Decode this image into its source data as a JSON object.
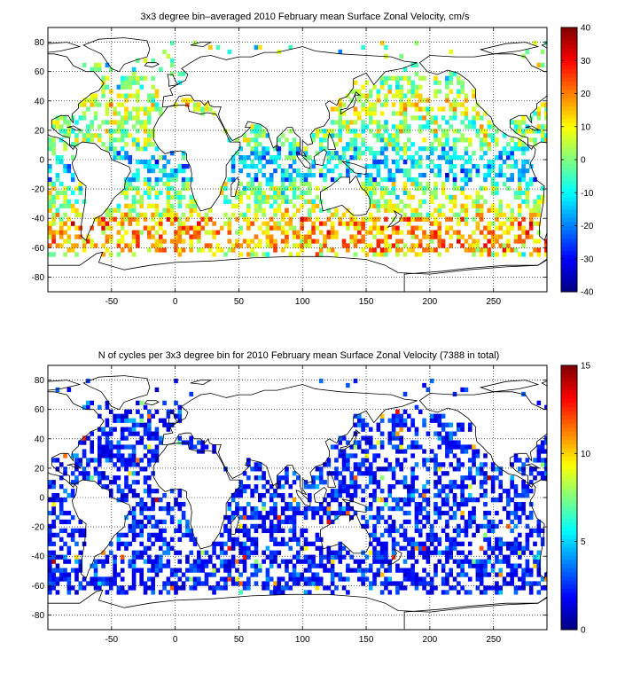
{
  "chart_data": [
    {
      "type": "heatmap",
      "title": "3x3 degree bin–averaged 2010 February mean Surface Zonal Velocity, cm/s",
      "xlabel": "",
      "ylabel": "",
      "xlim": [
        -100,
        292
      ],
      "ylim": [
        -90,
        90
      ],
      "x_ticks": [
        -50,
        0,
        50,
        100,
        150,
        200,
        250
      ],
      "y_ticks": [
        -80,
        -60,
        -40,
        -20,
        0,
        20,
        40,
        60,
        80
      ],
      "grid": true,
      "colorbar": {
        "min": -40,
        "max": 40,
        "ticks": [
          -40,
          -30,
          -20,
          -10,
          0,
          10,
          20,
          30,
          40
        ],
        "colormap": "jet"
      },
      "bin_size_deg": 3,
      "value_range_shown": [
        -40,
        40
      ]
    },
    {
      "type": "heatmap",
      "title": "N of cycles per 3x3 degree bin for 2010 February mean Surface Zonal Velocity (7388 in total)",
      "xlabel": "",
      "ylabel": "",
      "xlim": [
        -100,
        292
      ],
      "ylim": [
        -90,
        90
      ],
      "x_ticks": [
        -50,
        0,
        50,
        100,
        150,
        200,
        250
      ],
      "y_ticks": [
        -80,
        -60,
        -40,
        -20,
        0,
        20,
        40,
        60,
        80
      ],
      "grid": true,
      "colorbar": {
        "min": 0,
        "max": 15,
        "ticks": [
          0,
          5,
          10,
          15
        ],
        "colormap": "jet"
      },
      "bin_size_deg": 3,
      "total_cycles": 7388
    }
  ],
  "colors": {
    "jet_low": "#00008f",
    "jet_mid": "#80ff80",
    "jet_high": "#800000",
    "land_outline": "#000000",
    "background": "#ffffff"
  }
}
